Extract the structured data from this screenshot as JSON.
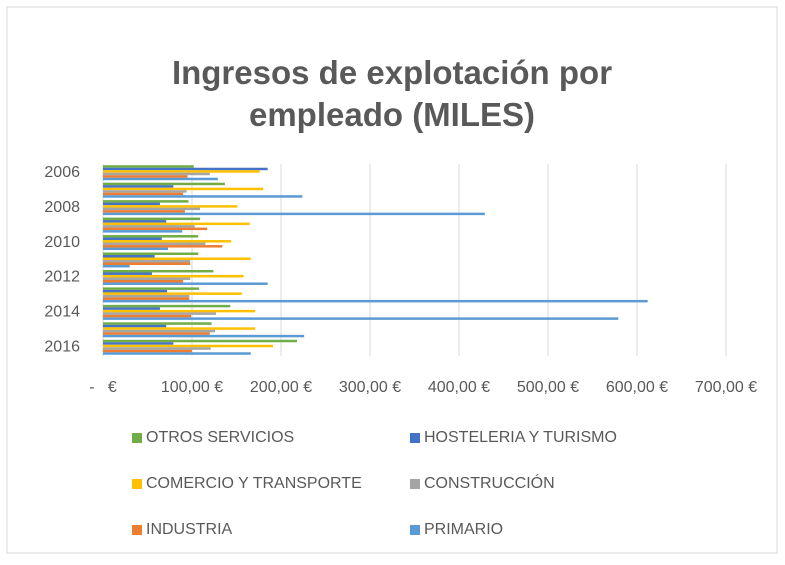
{
  "chart_data": {
    "type": "bar",
    "orientation": "horizontal",
    "title": "Ingresos de explotación por empleado (MILES)",
    "categories": [
      "2006",
      null,
      "2008",
      null,
      "2010",
      null,
      "2012",
      null,
      "2014",
      null,
      "2016"
    ],
    "series": [
      {
        "name": "OTROS SERVICIOS",
        "color": "#70ad47",
        "values": [
          102,
          137,
          96,
          109,
          107,
          107,
          124,
          108,
          143,
          122,
          218
        ]
      },
      {
        "name": "HOSTELERIA Y TURISMO",
        "color": "#4472c4",
        "values": [
          185,
          79,
          64,
          71,
          66,
          58,
          55,
          72,
          64,
          71,
          79
        ]
      },
      {
        "name": "COMERCIO Y TRANSPORTE",
        "color": "#ffc000",
        "values": [
          176,
          180,
          151,
          165,
          144,
          166,
          158,
          156,
          171,
          171,
          191
        ]
      },
      {
        "name": "CONSTRUCCIÓN",
        "color": "#a5a5a5",
        "values": [
          120,
          94,
          109,
          103,
          115,
          98,
          98,
          97,
          127,
          126,
          121
        ]
      },
      {
        "name": "INDUSTRIA",
        "color": "#ed7d31",
        "values": [
          95,
          90,
          92,
          117,
          134,
          98,
          90,
          97,
          99,
          120,
          100
        ]
      },
      {
        "name": "PRIMARIO",
        "color": "#5b9bd5",
        "values": [
          129,
          224,
          429,
          89,
          73,
          30,
          185,
          612,
          579,
          226,
          166
        ]
      }
    ],
    "xlim": [
      0,
      700
    ],
    "xticks": [
      {
        "value": 0,
        "label": "-   €"
      },
      {
        "value": 100,
        "label": "100,00 €"
      },
      {
        "value": 200,
        "label": "200,00 €"
      },
      {
        "value": 300,
        "label": "300,00 €"
      },
      {
        "value": 400,
        "label": "400,00 €"
      },
      {
        "value": 500,
        "label": "500,00 €"
      },
      {
        "value": 600,
        "label": "600,00 €"
      },
      {
        "value": 700,
        "label": "700,00 €"
      }
    ],
    "grid": true,
    "legend": "bottom"
  }
}
